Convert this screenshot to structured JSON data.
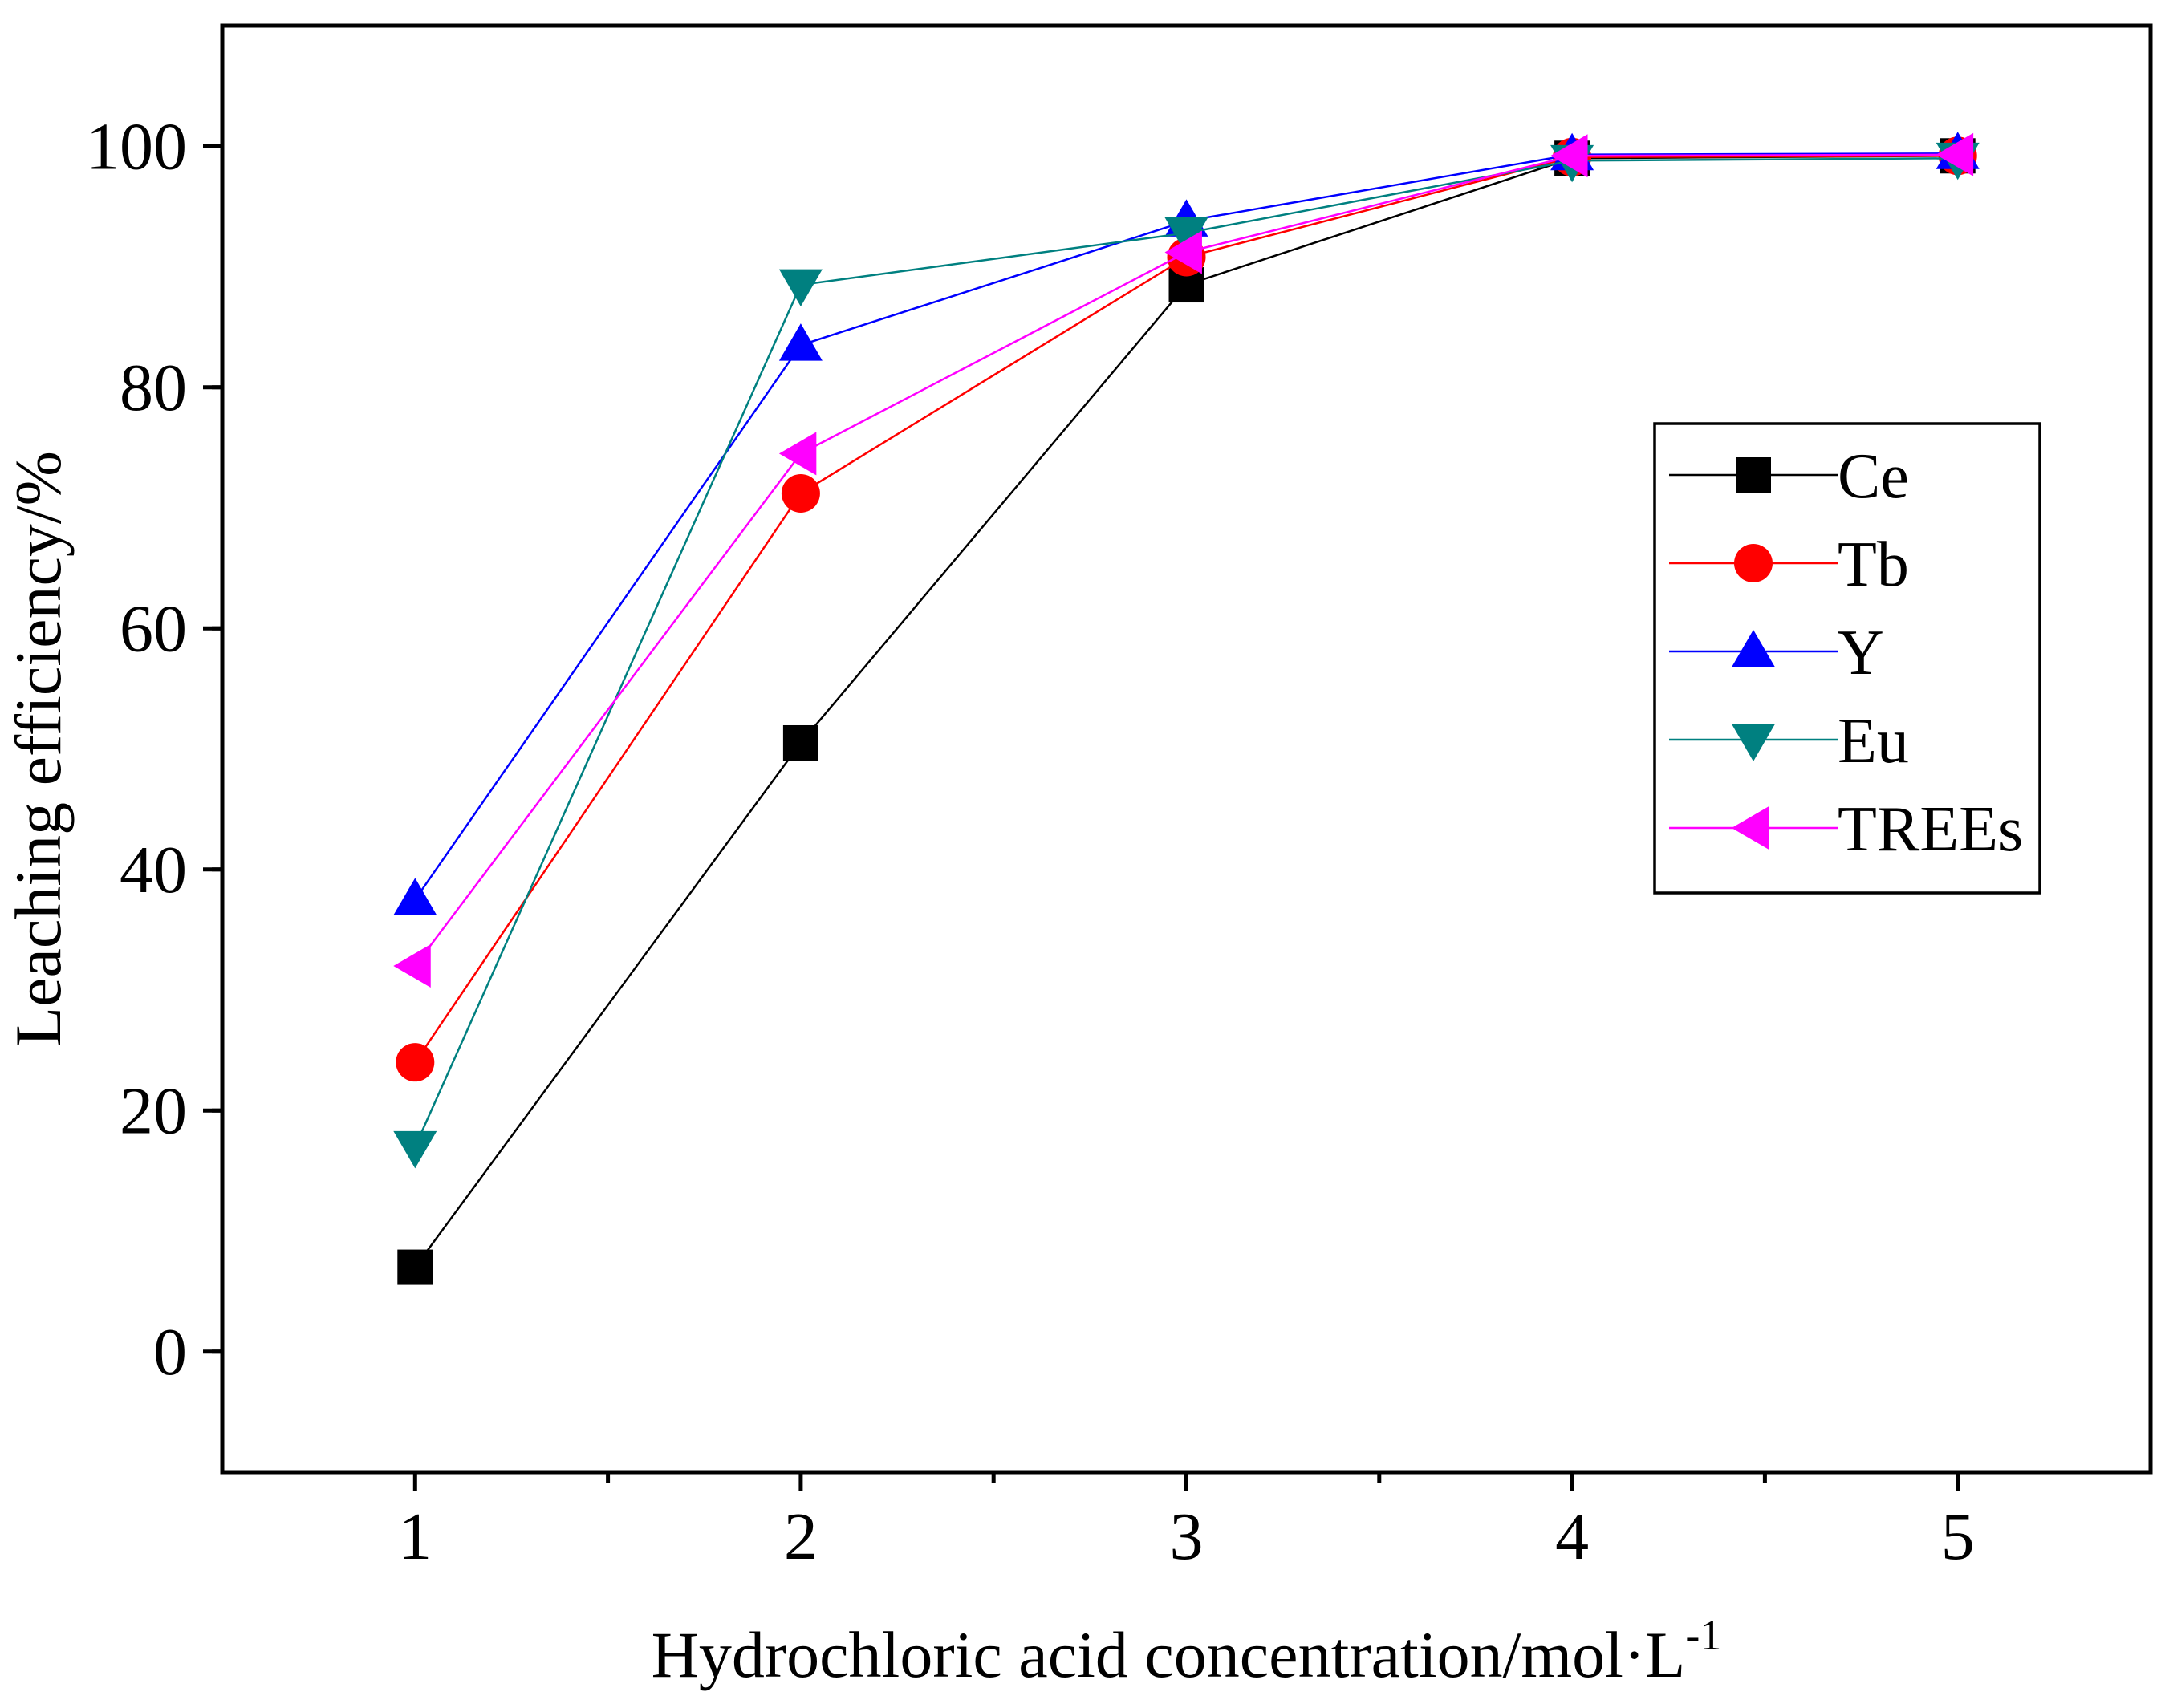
{
  "chart_data": {
    "type": "line",
    "xlabel": "Hydrochloric acid concentration/mol·L",
    "xlabel_superscript": "-1",
    "ylabel": "Leaching efficiency/%",
    "xlim": [
      0.5,
      5.5
    ],
    "ylim": [
      -10,
      110
    ],
    "x_ticks": [
      1,
      2,
      3,
      4,
      5
    ],
    "x_tick_labels": [
      "1",
      "2",
      "3",
      "4",
      "5"
    ],
    "y_ticks": [
      0,
      20,
      40,
      60,
      80,
      100
    ],
    "y_tick_labels": [
      "0",
      "20",
      "40",
      "60",
      "80",
      "100"
    ],
    "grid": false,
    "legend_position": "right",
    "x": [
      1,
      2,
      3,
      4,
      5
    ],
    "series": [
      {
        "name": "Ce",
        "color": "#000000",
        "marker": "square",
        "values": [
          7.0,
          50.5,
          88.5,
          99.0,
          99.2
        ]
      },
      {
        "name": "Tb",
        "color": "#ff0000",
        "marker": "circle",
        "values": [
          24.0,
          71.2,
          90.8,
          99.1,
          99.2
        ]
      },
      {
        "name": "Y",
        "color": "#0000ff",
        "marker": "triangle-up",
        "values": [
          37.5,
          83.5,
          93.8,
          99.3,
          99.4
        ]
      },
      {
        "name": "Eu",
        "color": "#008080",
        "marker": "triangle-down",
        "values": [
          17.0,
          88.5,
          92.8,
          98.8,
          99.0
        ]
      },
      {
        "name": "TREEs",
        "color": "#ff00ff",
        "marker": "triangle-left",
        "values": [
          32.0,
          74.5,
          91.2,
          99.2,
          99.3
        ]
      }
    ]
  }
}
